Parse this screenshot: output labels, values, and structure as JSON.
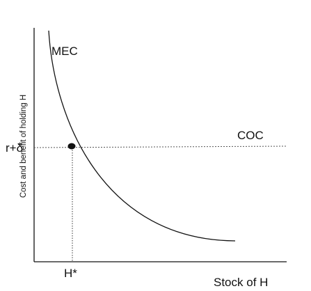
{
  "diagram": {
    "y_axis_label": "Cost and benefit of holding H",
    "x_axis_label": "Stock of H",
    "mec_label": "MEC",
    "coc_label": "COC",
    "rate_label": "r+δ",
    "equilibrium_label": "H*"
  }
}
